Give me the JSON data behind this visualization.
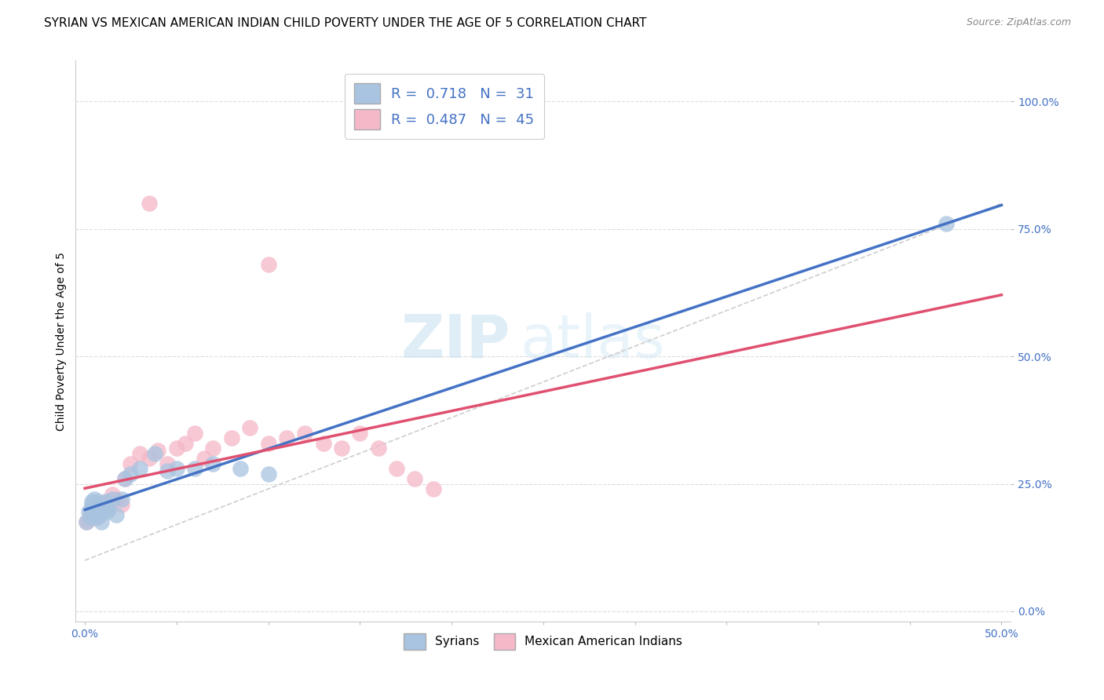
{
  "title": "SYRIAN VS MEXICAN AMERICAN INDIAN CHILD POVERTY UNDER THE AGE OF 5 CORRELATION CHART",
  "source": "Source: ZipAtlas.com",
  "xlabel_ticks": [
    "0.0%",
    "",
    "",
    "",
    "",
    "",
    "",
    "",
    "",
    "",
    "50.0%"
  ],
  "xlabel_vals": [
    0.0,
    0.05,
    0.1,
    0.15,
    0.2,
    0.25,
    0.3,
    0.35,
    0.4,
    0.45,
    0.5
  ],
  "ylabel": "Child Poverty Under the Age of 5",
  "ylabel_ticks": [
    "100.0%",
    "75.0%",
    "50.0%",
    "25.0%",
    "0.0%"
  ],
  "ylabel_vals": [
    1.0,
    0.75,
    0.5,
    0.25,
    0.0
  ],
  "xlim": [
    -0.005,
    0.505
  ],
  "ylim": [
    -0.02,
    1.08
  ],
  "syrians_R": 0.718,
  "syrians_N": 31,
  "mexican_R": 0.487,
  "mexican_N": 45,
  "syrians_color": "#a8c4e0",
  "syrians_line_color": "#4472c4",
  "mexican_color": "#f4b8c8",
  "mexican_line_color": "#e05070",
  "diagonal_color": "#c8c8c8",
  "background_color": "#ffffff",
  "grid_color": "#dddddd",
  "watermark_zip": "ZIP",
  "watermark_atlas": "atlas",
  "syrians_x": [
    0.001,
    0.002,
    0.003,
    0.004,
    0.004,
    0.005,
    0.005,
    0.006,
    0.006,
    0.007,
    0.007,
    0.008,
    0.009,
    0.01,
    0.011,
    0.012,
    0.013,
    0.015,
    0.017,
    0.02,
    0.022,
    0.025,
    0.03,
    0.038,
    0.045,
    0.05,
    0.06,
    0.07,
    0.085,
    0.1,
    0.47
  ],
  "syrians_y": [
    0.175,
    0.195,
    0.185,
    0.21,
    0.215,
    0.2,
    0.22,
    0.195,
    0.205,
    0.215,
    0.185,
    0.19,
    0.175,
    0.2,
    0.215,
    0.195,
    0.2,
    0.22,
    0.19,
    0.22,
    0.26,
    0.27,
    0.28,
    0.31,
    0.275,
    0.28,
    0.28,
    0.29,
    0.28,
    0.27,
    0.76
  ],
  "mexican_x": [
    0.001,
    0.002,
    0.003,
    0.004,
    0.004,
    0.005,
    0.005,
    0.006,
    0.006,
    0.007,
    0.007,
    0.008,
    0.009,
    0.01,
    0.011,
    0.012,
    0.013,
    0.015,
    0.017,
    0.02,
    0.022,
    0.025,
    0.03,
    0.035,
    0.04,
    0.045,
    0.05,
    0.055,
    0.06,
    0.065,
    0.07,
    0.08,
    0.09,
    0.1,
    0.11,
    0.12,
    0.13,
    0.14,
    0.15,
    0.16,
    0.17,
    0.18,
    0.19,
    0.035,
    0.1
  ],
  "mexican_y": [
    0.175,
    0.18,
    0.19,
    0.195,
    0.2,
    0.185,
    0.21,
    0.2,
    0.205,
    0.195,
    0.185,
    0.2,
    0.21,
    0.195,
    0.2,
    0.215,
    0.205,
    0.23,
    0.22,
    0.21,
    0.26,
    0.29,
    0.31,
    0.3,
    0.315,
    0.29,
    0.32,
    0.33,
    0.35,
    0.3,
    0.32,
    0.34,
    0.36,
    0.33,
    0.34,
    0.35,
    0.33,
    0.32,
    0.35,
    0.32,
    0.28,
    0.26,
    0.24,
    0.8,
    0.68
  ],
  "title_fontsize": 11,
  "axis_label_fontsize": 10,
  "tick_fontsize": 10,
  "legend_fontsize": 13,
  "source_fontsize": 9
}
